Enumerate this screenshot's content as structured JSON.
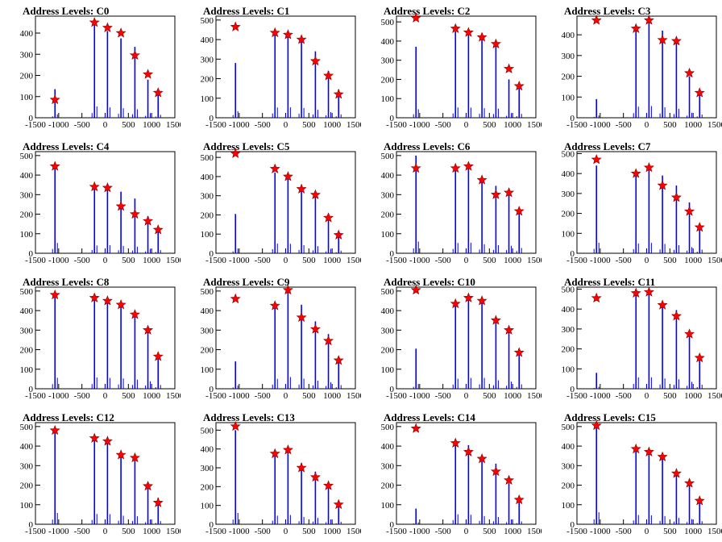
{
  "style": {
    "bar_color": "#0000ff",
    "marker_color": "#ff0000",
    "axis_color": "#000000"
  },
  "chart_data": [
    {
      "type": "bar",
      "title": "Address Levels: C0",
      "xlim": [
        -1500,
        1500
      ],
      "ylim": [
        0,
        480
      ],
      "yticks": [
        0,
        100,
        200,
        300,
        400
      ],
      "xticks": [
        -1500,
        -1000,
        -500,
        0,
        500,
        1000,
        1500
      ],
      "x": [
        -1080,
        -230,
        50,
        340,
        640,
        920,
        1140
      ],
      "values": [
        135,
        445,
        410,
        375,
        335,
        180,
        115
      ],
      "peaks": [
        85,
        450,
        425,
        400,
        295,
        205,
        118
      ]
    },
    {
      "type": "bar",
      "title": "Address Levels: C1",
      "xlim": [
        -1500,
        1500
      ],
      "ylim": [
        0,
        520
      ],
      "yticks": [
        0,
        100,
        200,
        300,
        400,
        500
      ],
      "xticks": [
        -1500,
        -1000,
        -500,
        0,
        500,
        1000,
        1500
      ],
      "x": [
        -1080,
        -230,
        50,
        340,
        640,
        920,
        1140
      ],
      "values": [
        280,
        440,
        445,
        415,
        340,
        240,
        145
      ],
      "peaks": [
        465,
        435,
        425,
        400,
        290,
        215,
        120
      ]
    },
    {
      "type": "bar",
      "title": "Address Levels: C2",
      "xlim": [
        -1500,
        1500
      ],
      "ylim": [
        0,
        530
      ],
      "yticks": [
        0,
        100,
        200,
        300,
        400,
        500
      ],
      "xticks": [
        -1500,
        -1000,
        -500,
        0,
        500,
        1000,
        1500
      ],
      "x": [
        -1080,
        -230,
        50,
        340,
        640,
        920,
        1140
      ],
      "values": [
        370,
        450,
        440,
        415,
        395,
        200,
        170
      ],
      "peaks": [
        520,
        465,
        445,
        420,
        385,
        255,
        165
      ]
    },
    {
      "type": "bar",
      "title": "Address Levels: C3",
      "xlim": [
        -1500,
        1500
      ],
      "ylim": [
        0,
        490
      ],
      "yticks": [
        0,
        100,
        200,
        300,
        400
      ],
      "xticks": [
        -1500,
        -1000,
        -500,
        0,
        500,
        1000,
        1500
      ],
      "x": [
        -1080,
        -230,
        50,
        340,
        640,
        920,
        1140
      ],
      "values": [
        90,
        445,
        470,
        420,
        360,
        200,
        130
      ],
      "peaks": [
        470,
        430,
        470,
        375,
        370,
        215,
        120
      ]
    },
    {
      "type": "bar",
      "title": "Address Levels: C4",
      "xlim": [
        -1500,
        1500
      ],
      "ylim": [
        0,
        520
      ],
      "yticks": [
        0,
        100,
        200,
        300,
        400,
        500
      ],
      "xticks": [
        -1500,
        -1000,
        -500,
        0,
        500,
        1000,
        1500
      ],
      "x": [
        -1080,
        -230,
        50,
        340,
        640,
        920,
        1140
      ],
      "values": [
        440,
        330,
        345,
        315,
        280,
        190,
        135
      ],
      "peaks": [
        445,
        340,
        335,
        240,
        200,
        165,
        120
      ]
    },
    {
      "type": "bar",
      "title": "Address Levels: C5",
      "xlim": [
        -1500,
        1500
      ],
      "ylim": [
        0,
        530
      ],
      "yticks": [
        0,
        100,
        200,
        300,
        400,
        500
      ],
      "xticks": [
        -1500,
        -1000,
        -500,
        0,
        500,
        1000,
        1500
      ],
      "x": [
        -1080,
        -230,
        50,
        340,
        640,
        920,
        1140
      ],
      "values": [
        205,
        420,
        410,
        350,
        310,
        195,
        110
      ],
      "peaks": [
        520,
        440,
        400,
        335,
        305,
        185,
        95
      ]
    },
    {
      "type": "bar",
      "title": "Address Levels: C6",
      "xlim": [
        -1500,
        1500
      ],
      "ylim": [
        0,
        520
      ],
      "yticks": [
        0,
        100,
        200,
        300,
        400,
        500
      ],
      "xticks": [
        -1500,
        -1000,
        -500,
        0,
        500,
        1000,
        1500
      ],
      "x": [
        -1080,
        -230,
        50,
        340,
        640,
        920,
        1140
      ],
      "values": [
        500,
        440,
        450,
        385,
        345,
        320,
        225
      ],
      "peaks": [
        435,
        435,
        445,
        375,
        300,
        310,
        215
      ]
    },
    {
      "type": "bar",
      "title": "Address Levels: C7",
      "xlim": [
        -1500,
        1500
      ],
      "ylim": [
        0,
        510
      ],
      "yticks": [
        0,
        100,
        200,
        300,
        400,
        500
      ],
      "xticks": [
        -1500,
        -1000,
        -500,
        0,
        500,
        1000,
        1500
      ],
      "x": [
        -1080,
        -230,
        50,
        340,
        640,
        920,
        1140
      ],
      "values": [
        440,
        410,
        435,
        390,
        340,
        255,
        150
      ],
      "peaks": [
        470,
        400,
        430,
        340,
        280,
        210,
        130
      ]
    },
    {
      "type": "bar",
      "title": "Address Levels: C8",
      "xlim": [
        -1500,
        1500
      ],
      "ylim": [
        0,
        520
      ],
      "yticks": [
        0,
        100,
        200,
        300,
        400,
        500
      ],
      "xticks": [
        -1500,
        -1000,
        -500,
        0,
        500,
        1000,
        1500
      ],
      "x": [
        -1080,
        -230,
        50,
        340,
        640,
        920,
        1140
      ],
      "values": [
        470,
        480,
        460,
        440,
        390,
        320,
        160
      ],
      "peaks": [
        480,
        465,
        450,
        430,
        380,
        300,
        165
      ]
    },
    {
      "type": "bar",
      "title": "Address Levels: C9",
      "xlim": [
        -1500,
        1500
      ],
      "ylim": [
        0,
        520
      ],
      "yticks": [
        0,
        100,
        200,
        300,
        400,
        500
      ],
      "xticks": [
        -1500,
        -1000,
        -500,
        0,
        500,
        1000,
        1500
      ],
      "x": [
        -1080,
        -230,
        50,
        340,
        640,
        920,
        1140
      ],
      "values": [
        140,
        425,
        500,
        430,
        345,
        280,
        155
      ],
      "peaks": [
        460,
        425,
        505,
        365,
        305,
        245,
        145
      ]
    },
    {
      "type": "bar",
      "title": "Address Levels: C10",
      "xlim": [
        -1500,
        1500
      ],
      "ylim": [
        0,
        520
      ],
      "yticks": [
        0,
        100,
        200,
        300,
        400,
        500
      ],
      "xticks": [
        -1500,
        -1000,
        -500,
        0,
        500,
        1000,
        1500
      ],
      "x": [
        -1080,
        -230,
        50,
        340,
        640,
        920,
        1140
      ],
      "values": [
        205,
        430,
        460,
        460,
        360,
        305,
        190
      ],
      "peaks": [
        505,
        435,
        465,
        450,
        350,
        300,
        185
      ]
    },
    {
      "type": "bar",
      "title": "Address Levels: C11",
      "xlim": [
        -1500,
        1500
      ],
      "ylim": [
        0,
        510
      ],
      "yticks": [
        0,
        100,
        200,
        300,
        400,
        500
      ],
      "xticks": [
        -1500,
        -1000,
        -500,
        0,
        500,
        1000,
        1500
      ],
      "x": [
        -1080,
        -230,
        50,
        340,
        640,
        920,
        1140
      ],
      "values": [
        80,
        480,
        480,
        430,
        395,
        290,
        170
      ],
      "peaks": [
        455,
        480,
        485,
        420,
        365,
        275,
        155
      ]
    },
    {
      "type": "bar",
      "title": "Address Levels: C12",
      "xlim": [
        -1500,
        1500
      ],
      "ylim": [
        0,
        520
      ],
      "yticks": [
        0,
        100,
        200,
        300,
        400,
        500
      ],
      "xticks": [
        -1500,
        -1000,
        -500,
        0,
        500,
        1000,
        1500
      ],
      "x": [
        -1080,
        -230,
        50,
        340,
        640,
        920,
        1140
      ],
      "values": [
        480,
        440,
        430,
        365,
        340,
        205,
        135
      ],
      "peaks": [
        480,
        440,
        425,
        355,
        340,
        195,
        110
      ]
    },
    {
      "type": "bar",
      "title": "Address Levels: C13",
      "xlim": [
        -1500,
        1500
      ],
      "ylim": [
        0,
        540
      ],
      "yticks": [
        0,
        100,
        200,
        300,
        400,
        500
      ],
      "xticks": [
        -1500,
        -1000,
        -500,
        0,
        500,
        1000,
        1500
      ],
      "x": [
        -1080,
        -230,
        50,
        340,
        640,
        920,
        1140
      ],
      "values": [
        500,
        380,
        410,
        325,
        280,
        215,
        110
      ],
      "peaks": [
        520,
        375,
        395,
        300,
        250,
        205,
        105
      ]
    },
    {
      "type": "bar",
      "title": "Address Levels: C14",
      "xlim": [
        -1500,
        1500
      ],
      "ylim": [
        0,
        520
      ],
      "yticks": [
        0,
        100,
        200,
        300,
        400,
        500
      ],
      "xticks": [
        -1500,
        -1000,
        -500,
        0,
        500,
        1000,
        1500
      ],
      "x": [
        -1080,
        -230,
        50,
        340,
        640,
        920,
        1140
      ],
      "values": [
        80,
        425,
        405,
        350,
        310,
        210,
        120
      ],
      "peaks": [
        490,
        415,
        370,
        335,
        270,
        225,
        125
      ]
    },
    {
      "type": "bar",
      "title": "Address Levels: C15",
      "xlim": [
        -1500,
        1500
      ],
      "ylim": [
        0,
        520
      ],
      "yticks": [
        0,
        100,
        200,
        300,
        400,
        500
      ],
      "xticks": [
        -1500,
        -1000,
        -500,
        0,
        500,
        1000,
        1500
      ],
      "x": [
        -1080,
        -230,
        50,
        340,
        640,
        920,
        1140
      ],
      "values": [
        510,
        395,
        380,
        350,
        270,
        220,
        130
      ],
      "peaks": [
        505,
        385,
        370,
        345,
        260,
        210,
        120
      ]
    }
  ]
}
